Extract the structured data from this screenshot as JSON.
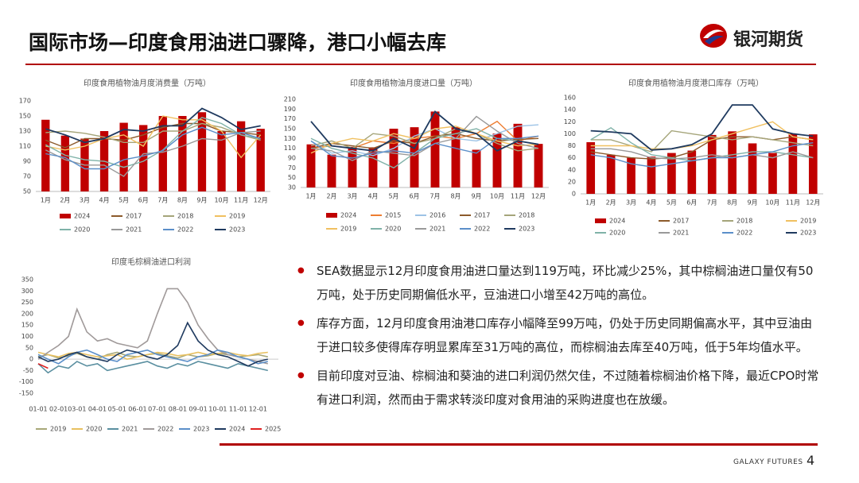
{
  "header": {
    "title": "国际市场—印度食用油进口骤降，港口小幅去库",
    "logo": "银河期货"
  },
  "bullets": [
    "SEA数据显示12月印度食用油进口量达到119万吨，环比减少25%，其中棕榈油进口量仅有50万吨，处于历史同期偏低水平，豆油进口小增至42万吨的高位。",
    "库存方面，12月印度食用油港口库存小幅降至99万吨，仍处于历史同期偏高水平，其中豆油由于进口较多使得库存明显累库至31万吨的高位，而棕榈油去库至40万吨，低于5年均值水平。",
    "目前印度对豆油、棕榈油和葵油的进口利润仍然欠佳，不过随着棕榈油价格下降，最近CPO时常有进口利润，然而由于需求转淡印度对食用油的采购进度也在放缓。"
  ],
  "footer": {
    "brand": "GALAXY FUTURES",
    "page": "4"
  },
  "chart_data": [
    {
      "type": "combo",
      "title": "印度食用植物油月度消费量（万吨）",
      "categories": [
        "1月",
        "2月",
        "3月",
        "4月",
        "5月",
        "6月",
        "7月",
        "8月",
        "9月",
        "10月",
        "11月",
        "12月"
      ],
      "ylim": [
        50,
        170
      ],
      "yticks": [
        50,
        70,
        90,
        110,
        130,
        150,
        170
      ],
      "grid": false,
      "series": [
        {
          "name": "2024",
          "type": "bar",
          "color": "#c00000",
          "values": [
            145,
            124,
            120,
            130,
            141,
            138,
            150,
            150,
            155,
            130,
            143,
            133
          ]
        },
        {
          "name": "2017",
          "type": "line",
          "color": "#8c5a2b",
          "values": [
            118,
            108,
            120,
            120,
            118,
            125,
            135,
            140,
            140,
            130,
            128,
            125
          ]
        },
        {
          "name": "2018",
          "type": "line",
          "color": "#a5a57a",
          "values": [
            128,
            130,
            127,
            122,
            115,
            115,
            130,
            130,
            140,
            135,
            125,
            118
          ]
        },
        {
          "name": "2019",
          "type": "line",
          "color": "#f0c060",
          "values": [
            110,
            105,
            110,
            120,
            125,
            110,
            150,
            145,
            145,
            130,
            95,
            125
          ]
        },
        {
          "name": "2020",
          "type": "line",
          "color": "#7fb2a8",
          "values": [
            112,
            98,
            92,
            90,
            82,
            90,
            105,
            130,
            148,
            140,
            125,
            120
          ]
        },
        {
          "name": "2021",
          "type": "line",
          "color": "#999999",
          "values": [
            105,
            92,
            85,
            85,
            70,
            100,
            102,
            110,
            120,
            118,
            128,
            130
          ]
        },
        {
          "name": "2022",
          "type": "line",
          "color": "#5b8fc9",
          "values": [
            100,
            95,
            80,
            80,
            92,
            97,
            104,
            125,
            135,
            125,
            128,
            120
          ]
        },
        {
          "name": "2023",
          "type": "line",
          "color": "#1f3a5f",
          "values": [
            133,
            125,
            115,
            120,
            132,
            130,
            137,
            137,
            160,
            148,
            132,
            137
          ]
        }
      ]
    },
    {
      "type": "combo",
      "title": "印度食用植物油月度进口量（万吨）",
      "categories": [
        "1月",
        "2月",
        "3月",
        "4月",
        "5月",
        "6月",
        "7月",
        "8月",
        "9月",
        "10月",
        "11月",
        "12月"
      ],
      "ylim": [
        30,
        210
      ],
      "yticks": [
        30,
        50,
        70,
        90,
        110,
        130,
        150,
        170,
        190,
        210
      ],
      "grid": false,
      "series": [
        {
          "name": "2024",
          "type": "bar",
          "color": "#c00000",
          "values": [
            118,
            97,
            113,
            112,
            150,
            153,
            185,
            153,
            107,
            140,
            160,
            119
          ]
        },
        {
          "name": "2015",
          "type": "line",
          "color": "#ed7d31",
          "values": [
            110,
            115,
            110,
            125,
            120,
            130,
            135,
            130,
            140,
            165,
            125,
            135
          ]
        },
        {
          "name": "2016",
          "type": "line",
          "color": "#9dc3e6",
          "values": [
            125,
            100,
            105,
            95,
            110,
            135,
            150,
            130,
            125,
            140,
            155,
            158
          ]
        },
        {
          "name": "2017",
          "type": "line",
          "color": "#8c5a2b",
          "values": [
            110,
            120,
            115,
            110,
            125,
            120,
            135,
            140,
            130,
            125,
            128,
            130
          ]
        },
        {
          "name": "2018",
          "type": "line",
          "color": "#a5a57a",
          "values": [
            115,
            125,
            110,
            140,
            135,
            120,
            130,
            150,
            140,
            120,
            105,
            110
          ]
        },
        {
          "name": "2019",
          "type": "line",
          "color": "#f0c060",
          "values": [
            100,
            120,
            130,
            125,
            140,
            130,
            150,
            155,
            140,
            125,
            115,
            118
          ]
        },
        {
          "name": "2020",
          "type": "line",
          "color": "#7fb2a8",
          "values": [
            130,
            110,
            100,
            90,
            70,
            100,
            130,
            140,
            150,
            130,
            125,
            118
          ]
        },
        {
          "name": "2021",
          "type": "line",
          "color": "#999999",
          "values": [
            110,
            105,
            85,
            105,
            100,
            95,
            120,
            130,
            175,
            145,
            120,
            110
          ]
        },
        {
          "name": "2022",
          "type": "line",
          "color": "#5b8fc9",
          "values": [
            125,
            95,
            90,
            100,
            105,
            100,
            120,
            110,
            100,
            130,
            130,
            135
          ]
        },
        {
          "name": "2023",
          "type": "line",
          "color": "#1f3a5f",
          "values": [
            165,
            115,
            110,
            105,
            130,
            110,
            185,
            150,
            140,
            105,
            125,
            118
          ]
        }
      ]
    },
    {
      "type": "combo",
      "title": "印度食用植物油月度港口库存（万吨）",
      "categories": [
        "1月",
        "2月",
        "3月",
        "4月",
        "5月",
        "6月",
        "7月",
        "8月",
        "9月",
        "10月",
        "11月",
        "12月"
      ],
      "ylim": [
        0,
        160
      ],
      "yticks": [
        0,
        20,
        40,
        60,
        80,
        100,
        120,
        140,
        160
      ],
      "grid": false,
      "series": [
        {
          "name": "2024",
          "type": "bar",
          "color": "#c00000",
          "values": [
            86,
            65,
            60,
            62,
            68,
            72,
            98,
            104,
            84,
            68,
            100,
            99
          ]
        },
        {
          "name": "2017",
          "type": "line",
          "color": "#8c5a2b",
          "values": [
            70,
            65,
            60,
            58,
            60,
            70,
            90,
            95,
            95,
            90,
            95,
            90
          ]
        },
        {
          "name": "2018",
          "type": "line",
          "color": "#a5a57a",
          "values": [
            90,
            90,
            80,
            70,
            105,
            100,
            95,
            90,
            95,
            90,
            85,
            80
          ]
        },
        {
          "name": "2019",
          "type": "line",
          "color": "#f0c060",
          "values": [
            80,
            80,
            80,
            75,
            75,
            80,
            90,
            100,
            110,
            120,
            95,
            90
          ]
        },
        {
          "name": "2020",
          "type": "line",
          "color": "#7fb2a8",
          "values": [
            90,
            110,
            85,
            65,
            60,
            55,
            60,
            65,
            70,
            70,
            65,
            60
          ]
        },
        {
          "name": "2021",
          "type": "line",
          "color": "#999999",
          "values": [
            75,
            75,
            70,
            60,
            58,
            60,
            65,
            60,
            65,
            60,
            70,
            60
          ]
        },
        {
          "name": "2022",
          "type": "line",
          "color": "#5b8fc9",
          "values": [
            65,
            60,
            50,
            45,
            50,
            55,
            60,
            60,
            65,
            70,
            80,
            85
          ]
        },
        {
          "name": "2023",
          "type": "line",
          "color": "#1f3a5f",
          "values": [
            105,
            103,
            100,
            73,
            75,
            82,
            100,
            148,
            148,
            108,
            100,
            96
          ]
        }
      ]
    },
    {
      "type": "line",
      "title": "印度毛棕榈油进口利润",
      "x": [
        "01-01",
        "01-16",
        "02-01",
        "02-16",
        "03-01",
        "03-16",
        "04-01",
        "04-16",
        "05-01",
        "05-16",
        "06-01",
        "06-16",
        "07-01",
        "07-16",
        "08-01",
        "08-16",
        "09-01",
        "09-16",
        "10-01",
        "10-16",
        "11-01",
        "11-16",
        "12-01",
        "12-16"
      ],
      "xticks": [
        "01-01",
        "02-01",
        "03-01",
        "04-01",
        "05-01",
        "06-01",
        "07-01",
        "08-01",
        "09-01",
        "10-01",
        "11-01",
        "12-01"
      ],
      "ylim": [
        -150,
        350
      ],
      "yticks": [
        -150,
        -100,
        -50,
        0,
        50,
        100,
        150,
        200,
        250,
        300,
        350
      ],
      "grid": false,
      "series": [
        {
          "name": "2019",
          "color": "#a8a878",
          "values": [
            10,
            20,
            5,
            15,
            25,
            10,
            0,
            20,
            30,
            15,
            10,
            20,
            25,
            15,
            5,
            20,
            10,
            15,
            25,
            20,
            10,
            15,
            20,
            10
          ]
        },
        {
          "name": "2020",
          "color": "#e8c060",
          "values": [
            30,
            20,
            10,
            25,
            30,
            20,
            10,
            15,
            20,
            0,
            10,
            20,
            30,
            25,
            15,
            20,
            30,
            20,
            25,
            30,
            20,
            15,
            25,
            30
          ]
        },
        {
          "name": "2021",
          "color": "#5a8fa0",
          "values": [
            -20,
            -60,
            -30,
            -40,
            -10,
            -30,
            -20,
            -50,
            -40,
            -30,
            -20,
            -10,
            -30,
            -40,
            -20,
            -30,
            -10,
            -20,
            -30,
            -40,
            -20,
            -30,
            -40,
            -50
          ]
        },
        {
          "name": "2022",
          "color": "#a09a9a",
          "values": [
            0,
            30,
            60,
            100,
            220,
            120,
            80,
            90,
            70,
            60,
            50,
            80,
            200,
            310,
            310,
            250,
            150,
            90,
            40,
            20,
            10,
            0,
            -10,
            -20
          ]
        },
        {
          "name": "2023",
          "color": "#5b8fc9",
          "values": [
            20,
            0,
            -20,
            10,
            30,
            40,
            20,
            0,
            -10,
            20,
            30,
            40,
            20,
            10,
            0,
            -10,
            10,
            20,
            40,
            30,
            10,
            0,
            -20,
            -10
          ]
        },
        {
          "name": "2024",
          "color": "#1f3a5f",
          "values": [
            10,
            -10,
            0,
            20,
            30,
            10,
            0,
            -10,
            20,
            40,
            30,
            10,
            0,
            20,
            60,
            160,
            80,
            40,
            20,
            10,
            -10,
            -30,
            -10,
            0
          ]
        },
        {
          "name": "2025",
          "color": "#e02020",
          "values": [
            -20,
            -40,
            null,
            null,
            null,
            null,
            null,
            null,
            null,
            null,
            null,
            null,
            null,
            null,
            null,
            null,
            null,
            null,
            null,
            null,
            null,
            null,
            null,
            null
          ]
        }
      ]
    }
  ]
}
